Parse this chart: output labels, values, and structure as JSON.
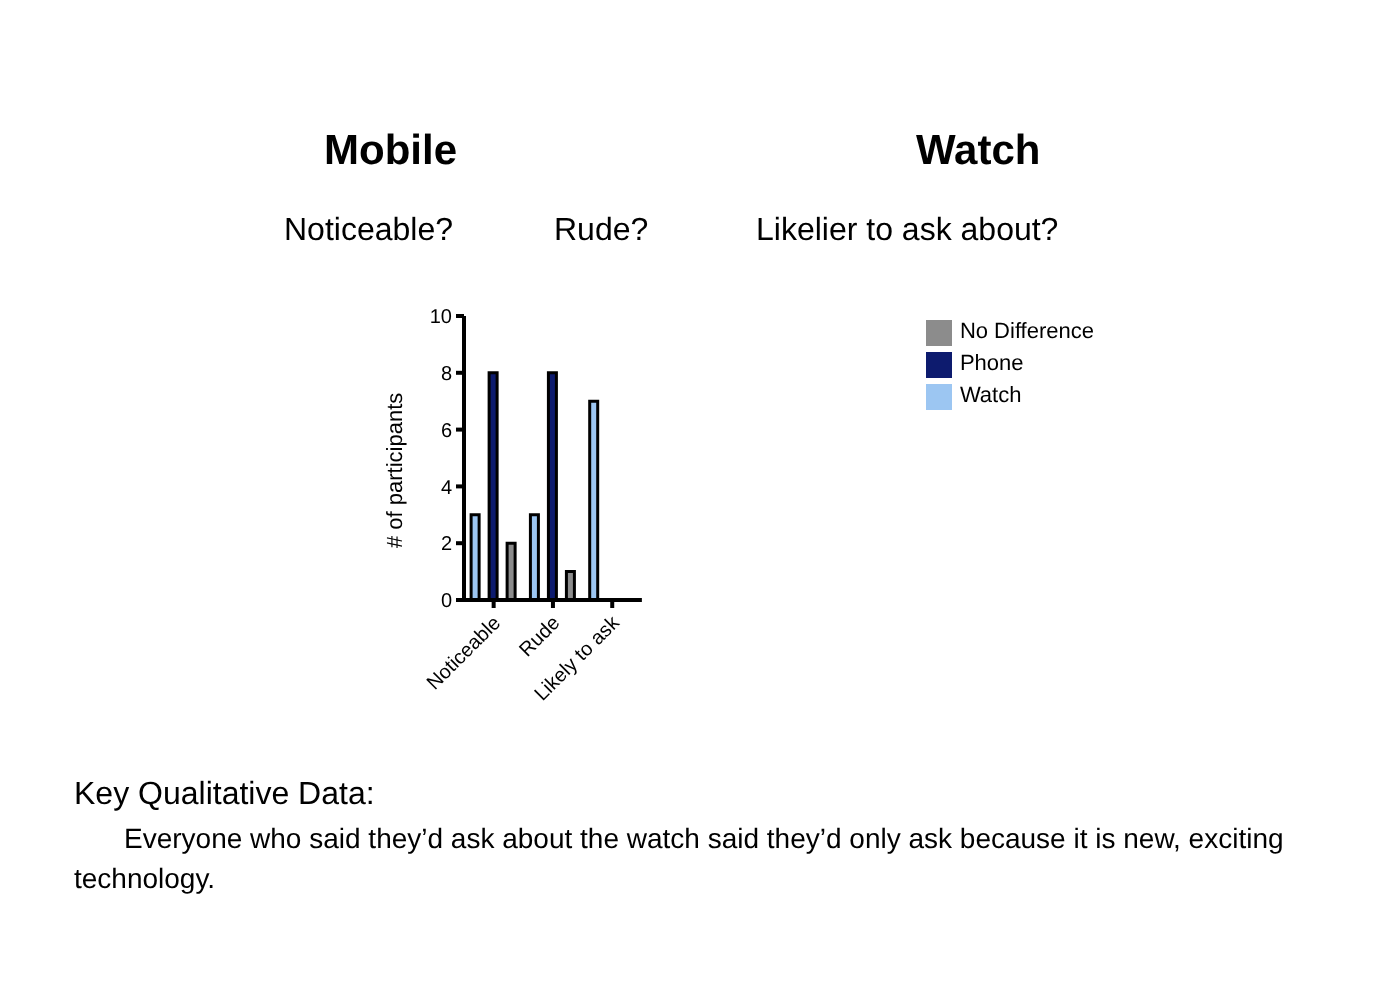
{
  "chart_data": {
    "type": "bar",
    "ylabel": "# of participants",
    "categories": [
      "Noticeable",
      "Rude",
      "Likely to ask"
    ],
    "series": [
      {
        "name": "Watch",
        "color": "#9cc6f2",
        "values": [
          3,
          3,
          7
        ]
      },
      {
        "name": "Phone",
        "color": "#0d1b6e",
        "values": [
          8,
          8,
          0
        ]
      },
      {
        "name": "No Difference",
        "color": "#8c8c8c",
        "values": [
          2,
          1,
          0
        ]
      }
    ],
    "ylim": [
      0,
      10
    ],
    "yticks": [
      0,
      2,
      4,
      6,
      8,
      10
    ],
    "grid": false,
    "legend": "top right",
    "annotations": [
      "Mobile",
      "Watch",
      "Noticeable?",
      "Rude?",
      "Likelier to ask about?",
      "Key Qualitative Data:",
      "Everyone who said they’d ask about the watch said they’d only ask because it is new, exciting technology."
    ]
  }
}
